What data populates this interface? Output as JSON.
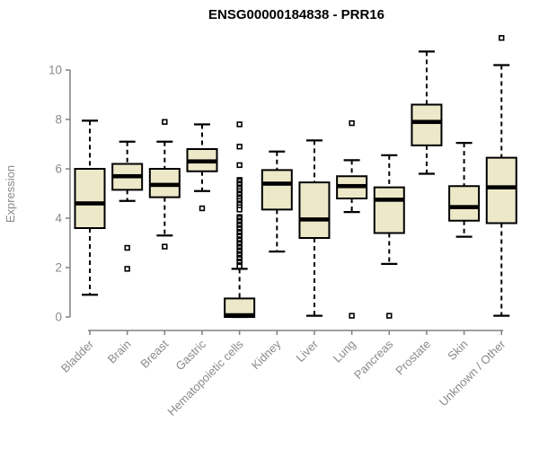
{
  "chart_data": {
    "type": "boxplot",
    "title": "ENSG00000184838 - PRR16",
    "ylabel": "Expression",
    "xlabel": "",
    "yticks": [
      0,
      2,
      4,
      6,
      8,
      10
    ],
    "ylim": [
      -0.5,
      11.6
    ],
    "grid": false,
    "legend": "none",
    "categories": [
      "Bladder",
      "Brain",
      "Breast",
      "Gastric",
      "Hematopoietic cells",
      "Kidney",
      "Liver",
      "Lung",
      "Pancreas",
      "Prostate",
      "Skin",
      "Unknown / Other"
    ],
    "series": [
      {
        "category": "Bladder",
        "low": 0.9,
        "q1": 3.6,
        "median": 4.6,
        "q3": 6.0,
        "high": 7.95,
        "outliers": []
      },
      {
        "category": "Brain",
        "low": 4.7,
        "q1": 5.15,
        "median": 5.7,
        "q3": 6.2,
        "high": 7.1,
        "outliers": [
          2.8,
          1.95
        ]
      },
      {
        "category": "Breast",
        "low": 3.3,
        "q1": 4.85,
        "median": 5.35,
        "q3": 6.0,
        "high": 7.1,
        "outliers": [
          7.9,
          2.85
        ]
      },
      {
        "category": "Gastric",
        "low": 5.1,
        "q1": 5.9,
        "median": 6.3,
        "q3": 6.8,
        "high": 7.8,
        "outliers": [
          4.4
        ]
      },
      {
        "category": "Hematopoietic cells",
        "low": 0.0,
        "q1": 0.0,
        "median": 0.07,
        "q3": 0.75,
        "high": 1.95,
        "outliers": [
          7.8,
          6.9,
          6.15,
          5.55,
          5.5,
          5.4,
          5.35,
          5.25,
          5.2,
          5.1,
          5.0,
          4.95,
          4.85,
          4.8,
          4.7,
          4.6,
          4.55,
          4.45,
          4.35,
          4.05,
          4.0,
          3.9,
          3.85,
          3.75,
          3.7,
          3.6,
          3.55,
          3.45,
          3.4,
          3.3,
          3.25,
          3.15,
          3.1,
          3.0,
          2.95,
          2.85,
          2.8,
          2.7,
          2.65,
          2.55,
          2.5,
          2.4,
          2.35,
          2.25,
          2.2,
          2.1,
          2.05
        ]
      },
      {
        "category": "Kidney",
        "low": 2.65,
        "q1": 4.35,
        "median": 5.4,
        "q3": 5.95,
        "high": 6.7,
        "outliers": []
      },
      {
        "category": "Liver",
        "low": 0.05,
        "q1": 3.2,
        "median": 3.95,
        "q3": 5.45,
        "high": 7.15,
        "outliers": []
      },
      {
        "category": "Lung",
        "low": 4.25,
        "q1": 4.8,
        "median": 5.3,
        "q3": 5.7,
        "high": 6.35,
        "outliers": [
          7.85,
          0.05
        ]
      },
      {
        "category": "Pancreas",
        "low": 2.15,
        "q1": 3.4,
        "median": 4.75,
        "q3": 5.25,
        "high": 6.55,
        "outliers": [
          0.05
        ]
      },
      {
        "category": "Prostate",
        "low": 5.8,
        "q1": 6.95,
        "median": 7.9,
        "q3": 8.6,
        "high": 10.75,
        "outliers": []
      },
      {
        "category": "Skin",
        "low": 3.25,
        "q1": 3.9,
        "median": 4.45,
        "q3": 5.3,
        "high": 7.05,
        "outliers": []
      },
      {
        "category": "Unknown / Other",
        "low": 0.05,
        "q1": 3.8,
        "median": 5.25,
        "q3": 6.45,
        "high": 10.2,
        "outliers": [
          11.3
        ]
      }
    ],
    "colors": {
      "box_fill": "#ede8c8",
      "box_stroke": "#000000",
      "median": "#000000",
      "whisker": "#000000",
      "outlier_stroke": "#000000",
      "outlier_fill": "#ffffff",
      "axis": "#808080",
      "tick_label": "#8a8a8a",
      "title": "#000000"
    }
  }
}
